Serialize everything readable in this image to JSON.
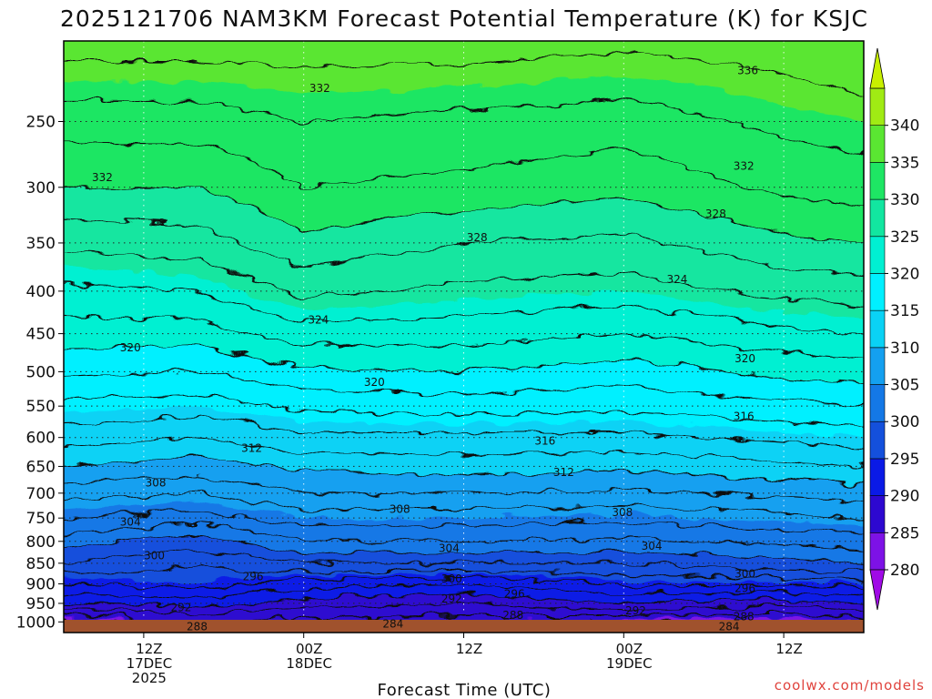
{
  "chart_data": {
    "type": "heatmap",
    "title": "2025121706 NAM3KM Forecast Potential Temperature (K) for KSJC",
    "xlabel": "Forecast Time (UTC)",
    "ylabel": "",
    "credit": "coolwx.com/models",
    "x_range_hours": [
      0,
      60
    ],
    "x_ticks": [
      {
        "hour": 6,
        "lines": [
          "12Z",
          "17DEC",
          "2025"
        ]
      },
      {
        "hour": 18,
        "lines": [
          "00Z",
          "18DEC"
        ]
      },
      {
        "hour": 30,
        "lines": [
          "12Z"
        ]
      },
      {
        "hour": 42,
        "lines": [
          "00Z",
          "19DEC"
        ]
      },
      {
        "hour": 54,
        "lines": [
          "12Z"
        ]
      }
    ],
    "y_axis": {
      "scale": "log",
      "range_hPa": [
        1030,
        200
      ],
      "ticks": [
        "250",
        "300",
        "350",
        "400",
        "450",
        "500",
        "550",
        "600",
        "650",
        "700",
        "750",
        "800",
        "850",
        "900",
        "950",
        "1000"
      ]
    },
    "colorbar": {
      "ticks": [
        "340",
        "335",
        "330",
        "325",
        "320",
        "315",
        "310",
        "305",
        "300",
        "295",
        "290",
        "285",
        "280"
      ],
      "levels": [
        275,
        280,
        285,
        290,
        295,
        300,
        305,
        310,
        315,
        320,
        325,
        330,
        335,
        340,
        345
      ],
      "colors": [
        "#cc00ff",
        "#a00ae6",
        "#7d12e6",
        "#2d08d0",
        "#0a1ae6",
        "#1450dc",
        "#1478e6",
        "#14a0f0",
        "#0ad2f5",
        "#00f0ff",
        "#00f0d2",
        "#12e6a0",
        "#1ee664",
        "#5ae632",
        "#a0eb14",
        "#c8f000"
      ]
    },
    "theta_profiles": [
      {
        "hour": 0,
        "p": [
          1000,
          950,
          900,
          850,
          800,
          750,
          700,
          650,
          600,
          550,
          500,
          450,
          400,
          350,
          300,
          250,
          200
        ],
        "theta": [
          283,
          290,
          294,
          298,
          301,
          304,
          307,
          310,
          313,
          315.5,
          318.5,
          321,
          323.5,
          326.5,
          330,
          333,
          337
        ]
      },
      {
        "hour": 10,
        "p": [
          1000,
          950,
          900,
          850,
          800,
          750,
          700,
          650,
          600,
          550,
          500,
          450,
          400,
          350,
          300,
          250,
          200
        ],
        "theta": [
          286,
          291,
          295,
          296,
          299,
          303,
          306,
          309,
          312,
          315,
          318,
          321,
          324,
          327,
          330,
          333,
          337
        ]
      },
      {
        "hour": 18,
        "p": [
          1000,
          950,
          900,
          850,
          800,
          750,
          700,
          650,
          600,
          550,
          500,
          450,
          400,
          350,
          300,
          250,
          200
        ],
        "theta": [
          285,
          289,
          293,
          298,
          302,
          305,
          308,
          310.5,
          313.5,
          316.5,
          319.5,
          323,
          326.5,
          329.5,
          332,
          334,
          337
        ]
      },
      {
        "hour": 30,
        "p": [
          1000,
          950,
          900,
          850,
          800,
          750,
          700,
          650,
          600,
          550,
          500,
          450,
          400,
          350,
          300,
          250,
          200
        ],
        "theta": [
          285,
          288,
          292,
          298,
          302,
          305,
          308,
          311,
          313.5,
          317,
          320,
          323,
          325.5,
          328,
          331.5,
          333.5,
          337
        ]
      },
      {
        "hour": 42,
        "p": [
          1000,
          950,
          900,
          850,
          800,
          750,
          700,
          650,
          600,
          550,
          500,
          450,
          400,
          350,
          300,
          250,
          200
        ],
        "theta": [
          284,
          290,
          294.5,
          298,
          301.5,
          304.5,
          307.5,
          310.5,
          313.5,
          316.5,
          319,
          322,
          325,
          327.5,
          330.5,
          333,
          336.5
        ]
      },
      {
        "hour": 54,
        "p": [
          1000,
          950,
          900,
          850,
          800,
          750,
          700,
          650,
          600,
          550,
          500,
          450,
          400,
          350,
          300,
          250,
          200
        ],
        "theta": [
          284,
          288.5,
          294.5,
          299.5,
          302.5,
          305.5,
          308.5,
          311.5,
          314.5,
          317.5,
          320.5,
          323.5,
          326.5,
          329.5,
          332.5,
          334.5,
          337
        ]
      },
      {
        "hour": 60,
        "p": [
          1000,
          950,
          900,
          850,
          800,
          750,
          700,
          650,
          600,
          550,
          500,
          450,
          400,
          350,
          300,
          250,
          200
        ],
        "theta": [
          285,
          290,
          295,
          300,
          303,
          306,
          309,
          312,
          315,
          318,
          321,
          324,
          327,
          330,
          333,
          335,
          338
        ]
      }
    ],
    "contour_labels": [
      {
        "value": "336",
        "hour": 51.3,
        "p": 217
      },
      {
        "value": "332",
        "hour": 19.2,
        "p": 228
      },
      {
        "value": "332",
        "hour": 51.0,
        "p": 283
      },
      {
        "value": "332",
        "hour": 2.9,
        "p": 292
      },
      {
        "value": "328",
        "hour": 48.9,
        "p": 323
      },
      {
        "value": "328",
        "hour": 31.0,
        "p": 345
      },
      {
        "value": "324",
        "hour": 46.0,
        "p": 387
      },
      {
        "value": "324",
        "hour": 19.1,
        "p": 433
      },
      {
        "value": "320",
        "hour": 5.0,
        "p": 468
      },
      {
        "value": "320",
        "hour": 51.1,
        "p": 482
      },
      {
        "value": "320",
        "hour": 23.3,
        "p": 515
      },
      {
        "value": "316",
        "hour": 51.0,
        "p": 566
      },
      {
        "value": "316",
        "hour": 36.1,
        "p": 606
      },
      {
        "value": "312",
        "hour": 14.1,
        "p": 618
      },
      {
        "value": "312",
        "hour": 37.5,
        "p": 661
      },
      {
        "value": "308",
        "hour": 6.9,
        "p": 680
      },
      {
        "value": "308",
        "hour": 25.2,
        "p": 732
      },
      {
        "value": "308",
        "hour": 41.9,
        "p": 738
      },
      {
        "value": "304",
        "hour": 5.0,
        "p": 758
      },
      {
        "value": "304",
        "hour": 28.9,
        "p": 816
      },
      {
        "value": "304",
        "hour": 44.1,
        "p": 811
      },
      {
        "value": "300",
        "hour": 6.8,
        "p": 832
      },
      {
        "value": "300",
        "hour": 51.1,
        "p": 875
      },
      {
        "value": "300",
        "hour": 29.1,
        "p": 888
      },
      {
        "value": "296",
        "hour": 14.2,
        "p": 882
      },
      {
        "value": "296",
        "hour": 51.1,
        "p": 911
      },
      {
        "value": "296",
        "hour": 33.8,
        "p": 925
      },
      {
        "value": "292",
        "hour": 29.1,
        "p": 938
      },
      {
        "value": "292",
        "hour": 8.8,
        "p": 961
      },
      {
        "value": "292",
        "hour": 42.9,
        "p": 970
      },
      {
        "value": "288",
        "hour": 33.7,
        "p": 982
      },
      {
        "value": "288",
        "hour": 51.0,
        "p": 985
      },
      {
        "value": "288",
        "hour": 10.0,
        "p": 1013
      },
      {
        "value": "284",
        "hour": 24.7,
        "p": 1005
      },
      {
        "value": "284",
        "hour": 49.9,
        "p": 1013
      }
    ]
  }
}
